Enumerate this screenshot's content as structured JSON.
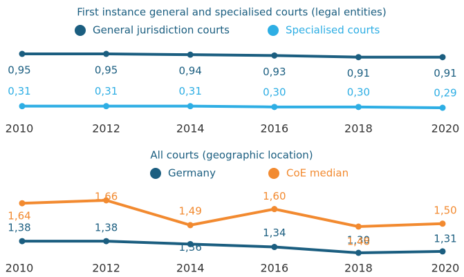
{
  "chart_data": [
    {
      "type": "line",
      "title": "First instance general and specialised courts (legal entities)",
      "x": [
        "2010",
        "2012",
        "2014",
        "2016",
        "2018",
        "2020"
      ],
      "series": [
        {
          "name": "General jurisdiction courts",
          "color": "#1b5e80",
          "values": [
            0.95,
            0.95,
            0.94,
            0.93,
            0.91,
            0.91
          ],
          "value_labels": [
            "0,95",
            "0,95",
            "0,94",
            "0,93",
            "0,91",
            "0,91"
          ]
        },
        {
          "name": "Specialised courts",
          "color": "#2eaee4",
          "values": [
            0.31,
            0.31,
            0.31,
            0.3,
            0.3,
            0.29
          ],
          "value_labels": [
            "0,31",
            "0,31",
            "0,31",
            "0,30",
            "0,30",
            "0,29"
          ]
        }
      ]
    },
    {
      "type": "line",
      "title": "All courts (geographic location)",
      "x": [
        "2010",
        "2012",
        "2014",
        "2016",
        "2018",
        "2020"
      ],
      "series": [
        {
          "name": "Germany",
          "color": "#1b5e80",
          "values": [
            1.38,
            1.38,
            1.36,
            1.34,
            1.3,
            1.31
          ],
          "value_labels": [
            "1,38",
            "1,38",
            "1,36",
            "1,34",
            "1,30",
            "1,31"
          ]
        },
        {
          "name": "CoE median",
          "color": "#f28a30",
          "values": [
            1.64,
            1.66,
            1.49,
            1.6,
            1.48,
            1.5
          ],
          "value_labels": [
            "1,64",
            "1,66",
            "1,49",
            "1,60",
            "1,48",
            "1,50"
          ]
        }
      ]
    }
  ]
}
